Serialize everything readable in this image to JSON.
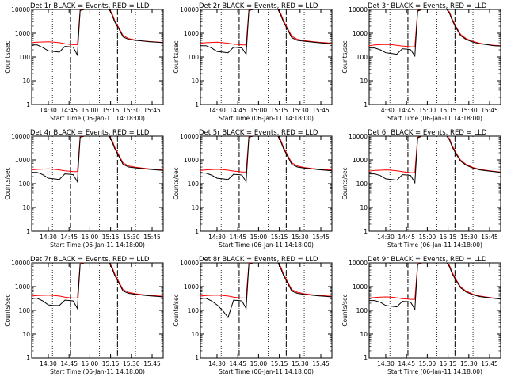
{
  "chart_data": {
    "type": "line",
    "layout_grid": "3x3",
    "y_scale": "log",
    "ylim": [
      1,
      10000
    ],
    "ylabel": "Counts/sec",
    "xlabel": "Start Time (06-Jan-11 14:18:00)",
    "x_ticks": [
      "14:30",
      "14:45",
      "15:00",
      "15:15",
      "15:30",
      "15:45"
    ],
    "y_ticks": [
      "1",
      "10",
      "100",
      "1000",
      "10000"
    ],
    "legend_text": "BLACK = Events, RED = LLD",
    "series_colors": {
      "events": "#000000",
      "lld": "#ff0000"
    },
    "x_values_minutes_after_1418": [
      0,
      4,
      8,
      12,
      16,
      20,
      24,
      28,
      30,
      33,
      35,
      38,
      40,
      42,
      44,
      46,
      48,
      50,
      53,
      56,
      58,
      60,
      63,
      66,
      70,
      75,
      80,
      85,
      90,
      95
    ],
    "vertical_markers_dashed": [
      "14:46",
      "15:20"
    ],
    "vertical_markers_dotted": [
      "14:33",
      "14:46",
      "15:07",
      "15:20",
      "15:33"
    ],
    "panels": [
      {
        "title": "Det 1r  BLACK = Events, RED = LLD",
        "events": [
          320,
          320,
          250,
          180,
          170,
          160,
          280,
          270,
          260,
          120,
          9000,
          10000,
          10000,
          10000,
          10000,
          10000,
          10000,
          10000,
          10000,
          10000,
          6000,
          3000,
          1500,
          700,
          550,
          500,
          470,
          440,
          420,
          400
        ],
        "lld": [
          400,
          420,
          430,
          440,
          420,
          400,
          360,
          340,
          330,
          330,
          9500,
          10000,
          10000,
          10000,
          10000,
          10000,
          10000,
          10000,
          10000,
          10000,
          7000,
          3500,
          1700,
          800,
          600,
          520,
          480,
          450,
          430,
          410
        ]
      },
      {
        "title": "Det 2r  BLACK = Events, RED = LLD",
        "events": [
          300,
          300,
          240,
          170,
          160,
          150,
          260,
          250,
          240,
          130,
          9000,
          10000,
          10000,
          10000,
          10000,
          10000,
          10000,
          10000,
          10000,
          10000,
          6000,
          3000,
          1400,
          650,
          500,
          460,
          430,
          400,
          380,
          360
        ],
        "lld": [
          380,
          400,
          410,
          420,
          400,
          380,
          350,
          330,
          320,
          320,
          9500,
          10000,
          10000,
          10000,
          10000,
          10000,
          10000,
          10000,
          10000,
          10000,
          7000,
          3500,
          1600,
          750,
          560,
          490,
          450,
          420,
          400,
          380
        ]
      },
      {
        "title": "Det 3r  BLACK = Events, RED = LLD",
        "events": [
          240,
          240,
          200,
          150,
          140,
          130,
          220,
          210,
          200,
          110,
          8500,
          10000,
          10000,
          10000,
          10000,
          10000,
          10000,
          10000,
          10000,
          10000,
          7000,
          3500,
          1600,
          800,
          550,
          420,
          360,
          330,
          300,
          290
        ],
        "lld": [
          300,
          320,
          330,
          340,
          330,
          310,
          290,
          280,
          270,
          270,
          9000,
          10000,
          10000,
          10000,
          10000,
          10000,
          10000,
          10000,
          10000,
          10000,
          8000,
          4000,
          1800,
          900,
          600,
          450,
          380,
          340,
          310,
          300
        ]
      },
      {
        "title": "Det 4r  BLACK = Events, RED = LLD",
        "events": [
          300,
          300,
          240,
          170,
          160,
          150,
          260,
          250,
          240,
          120,
          9000,
          10000,
          10000,
          10000,
          10000,
          10000,
          10000,
          10000,
          10000,
          10000,
          6000,
          3000,
          1400,
          650,
          500,
          460,
          430,
          400,
          380,
          360
        ],
        "lld": [
          380,
          400,
          410,
          420,
          400,
          380,
          350,
          330,
          320,
          320,
          9500,
          10000,
          10000,
          10000,
          10000,
          10000,
          10000,
          10000,
          10000,
          10000,
          7000,
          3500,
          1600,
          750,
          560,
          490,
          450,
          420,
          400,
          380
        ]
      },
      {
        "title": "Det 5r  BLACK = Events, RED = LLD",
        "events": [
          280,
          280,
          230,
          170,
          160,
          150,
          250,
          240,
          230,
          120,
          9000,
          10000,
          10000,
          10000,
          10000,
          10000,
          10000,
          10000,
          10000,
          10000,
          6000,
          3000,
          1400,
          650,
          500,
          450,
          420,
          390,
          370,
          350
        ],
        "lld": [
          360,
          380,
          390,
          400,
          390,
          370,
          340,
          320,
          310,
          310,
          9500,
          10000,
          10000,
          10000,
          10000,
          10000,
          10000,
          10000,
          10000,
          10000,
          7000,
          3500,
          1600,
          750,
          560,
          480,
          440,
          410,
          390,
          370
        ]
      },
      {
        "title": "Det 6r  BLACK = Events, RED = LLD",
        "events": [
          260,
          260,
          220,
          160,
          150,
          140,
          240,
          230,
          220,
          110,
          8500,
          10000,
          10000,
          10000,
          10000,
          10000,
          10000,
          10000,
          10000,
          10000,
          7000,
          3500,
          1700,
          900,
          600,
          450,
          380,
          350,
          320,
          300
        ],
        "lld": [
          340,
          360,
          370,
          380,
          370,
          350,
          320,
          300,
          290,
          290,
          9000,
          10000,
          10000,
          10000,
          10000,
          10000,
          10000,
          10000,
          10000,
          10000,
          8000,
          4000,
          1900,
          1000,
          650,
          480,
          400,
          360,
          330,
          310
        ]
      },
      {
        "title": "Det 7r  BLACK = Events, RED = LLD",
        "events": [
          320,
          320,
          250,
          170,
          160,
          160,
          270,
          260,
          250,
          120,
          9000,
          10000,
          10000,
          10000,
          10000,
          10000,
          10000,
          10000,
          10000,
          10000,
          6000,
          3000,
          1400,
          650,
          520,
          470,
          440,
          410,
          390,
          370
        ],
        "lld": [
          400,
          420,
          430,
          440,
          420,
          400,
          360,
          340,
          330,
          330,
          9500,
          10000,
          10000,
          10000,
          10000,
          10000,
          10000,
          10000,
          10000,
          10000,
          7000,
          3500,
          1600,
          750,
          580,
          500,
          460,
          430,
          410,
          390
        ]
      },
      {
        "title": "Det 8r  BLACK = Events, RED = LLD",
        "events": [
          320,
          320,
          250,
          170,
          100,
          50,
          270,
          260,
          250,
          120,
          9000,
          10000,
          10000,
          10000,
          10000,
          10000,
          10000,
          10000,
          10000,
          10000,
          6000,
          3000,
          1400,
          650,
          520,
          470,
          440,
          410,
          390,
          370
        ],
        "lld": [
          400,
          420,
          430,
          440,
          420,
          400,
          360,
          340,
          330,
          330,
          9500,
          10000,
          10000,
          10000,
          10000,
          10000,
          10000,
          10000,
          10000,
          10000,
          7000,
          3500,
          1600,
          750,
          580,
          500,
          460,
          430,
          410,
          390
        ]
      },
      {
        "title": "Det 9r  BLACK = Events, RED = LLD",
        "events": [
          260,
          260,
          220,
          160,
          150,
          140,
          240,
          230,
          220,
          110,
          8500,
          10000,
          10000,
          10000,
          10000,
          10000,
          10000,
          10000,
          10000,
          10000,
          7000,
          3500,
          1700,
          900,
          600,
          450,
          380,
          350,
          320,
          300
        ],
        "lld": [
          330,
          350,
          360,
          370,
          360,
          340,
          310,
          300,
          290,
          290,
          9000,
          10000,
          10000,
          10000,
          10000,
          10000,
          10000,
          10000,
          10000,
          10000,
          8000,
          4000,
          1900,
          1000,
          650,
          480,
          400,
          360,
          330,
          310
        ]
      }
    ]
  }
}
